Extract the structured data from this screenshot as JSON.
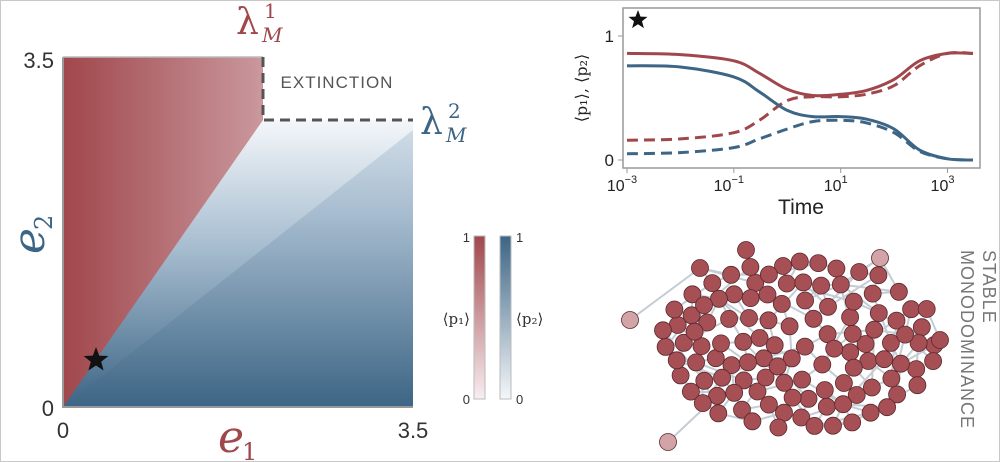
{
  "colors": {
    "red": "#a0474c",
    "blue": "#3d6585",
    "dash": "#555555",
    "axis": "#999999",
    "text": "#333333"
  },
  "phase": {
    "xlabel_symbol": "e",
    "xlabel_sub": "1",
    "ylabel_symbol": "e",
    "ylabel_sub": "2",
    "x_ticks": [
      "0",
      "3.5"
    ],
    "y_ticks": [
      "3.5",
      "0"
    ],
    "extinction_label": "EXTINCTION",
    "lambda1_symbol": "λ",
    "lambda1_sup": "1",
    "lambda1_sub": "M",
    "lambda2_symbol": "λ",
    "lambda2_sup": "2",
    "lambda2_sub": "M",
    "marker_icon": "star-icon"
  },
  "colorbars": {
    "p1_label": "⟨p₁⟩",
    "p2_label": "⟨p₂⟩",
    "p1_top": "1",
    "p1_bottom": "0",
    "p2_top": "1",
    "p2_bottom": "0"
  },
  "timeseries": {
    "xlabel": "Time",
    "ylabel": "⟨p₁⟩, ⟨p₂⟩",
    "x_ticks": [
      {
        "base": "10",
        "exp": "−3",
        "value": -3
      },
      {
        "base": "10",
        "exp": "−1",
        "value": -1
      },
      {
        "base": "10",
        "exp": "1",
        "value": 1
      },
      {
        "base": "10",
        "exp": "3",
        "value": 3
      }
    ],
    "y_ticks": [
      {
        "label": "1",
        "value": 1
      },
      {
        "label": "0",
        "value": 0
      }
    ],
    "marker_icon": "star-icon"
  },
  "chart_data": {
    "type": "line",
    "x_scale": "log",
    "xlabel": "Time",
    "ylabel": "⟨p₁⟩, ⟨p₂⟩",
    "xlim": [
      0.001,
      3000
    ],
    "ylim": [
      0,
      1
    ],
    "series": [
      {
        "style": "solid",
        "color": "#a0474c",
        "x": [
          0.001,
          0.01,
          0.1,
          0.3,
          1,
          3,
          10,
          30,
          100,
          300,
          1000,
          3000
        ],
        "y": [
          0.86,
          0.85,
          0.8,
          0.7,
          0.57,
          0.52,
          0.53,
          0.56,
          0.65,
          0.8,
          0.86,
          0.86
        ]
      },
      {
        "style": "dashed",
        "color": "#a0474c",
        "x": [
          0.001,
          0.01,
          0.1,
          0.3,
          1,
          3,
          10,
          30,
          100,
          300,
          1000,
          3000
        ],
        "y": [
          0.16,
          0.17,
          0.22,
          0.32,
          0.48,
          0.51,
          0.51,
          0.53,
          0.6,
          0.76,
          0.86,
          0.86
        ]
      },
      {
        "style": "solid",
        "color": "#3d6585",
        "x": [
          0.001,
          0.01,
          0.1,
          0.3,
          1,
          3,
          10,
          30,
          100,
          300,
          1000,
          3000
        ],
        "y": [
          0.76,
          0.75,
          0.67,
          0.55,
          0.4,
          0.35,
          0.35,
          0.33,
          0.25,
          0.08,
          0.01,
          0.0
        ]
      },
      {
        "style": "dashed",
        "color": "#3d6585",
        "x": [
          0.001,
          0.01,
          0.1,
          0.3,
          1,
          3,
          10,
          30,
          100,
          300,
          1000,
          3000
        ],
        "y": [
          0.05,
          0.06,
          0.1,
          0.17,
          0.25,
          0.31,
          0.32,
          0.3,
          0.22,
          0.07,
          0.01,
          0.0
        ]
      }
    ]
  },
  "network": {
    "side_label_line1": "STABLE",
    "side_label_line2": "MONODOMINANCE"
  }
}
